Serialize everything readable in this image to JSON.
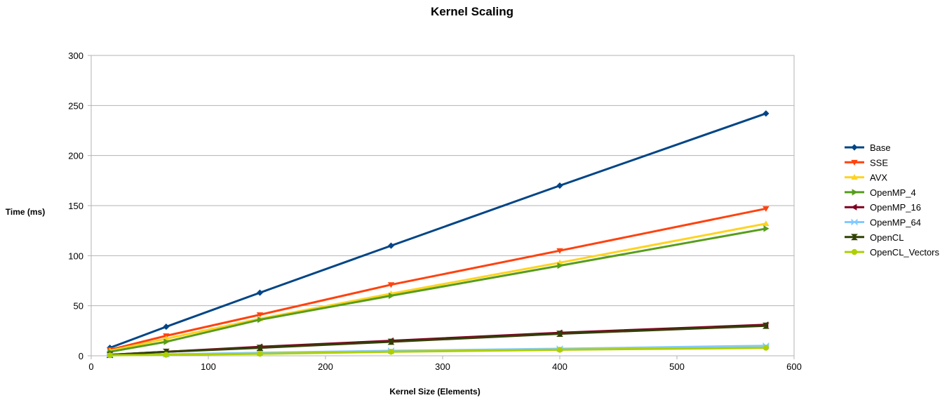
{
  "chart_data": {
    "type": "line",
    "title": "Kernel Scaling",
    "xlabel": "Kernel Size (Elements)",
    "ylabel": "Time (ms)",
    "xlim": [
      0,
      600
    ],
    "ylim": [
      0,
      300
    ],
    "xticks": [
      0,
      100,
      200,
      300,
      400,
      500,
      600
    ],
    "yticks": [
      0,
      50,
      100,
      150,
      200,
      250,
      300
    ],
    "grid": "horizontal",
    "legend_position": "right",
    "x": [
      16,
      64,
      144,
      256,
      400,
      576
    ],
    "series": [
      {
        "name": "Base",
        "color": "#004586",
        "marker": "diamond",
        "values": [
          8,
          29,
          63,
          110,
          170,
          242
        ]
      },
      {
        "name": "SSE",
        "color": "#ff420e",
        "marker": "triangle-down",
        "values": [
          6,
          20,
          41,
          71,
          105,
          147
        ]
      },
      {
        "name": "AVX",
        "color": "#ffd320",
        "marker": "triangle-up",
        "values": [
          5,
          17,
          37,
          62,
          93,
          132
        ]
      },
      {
        "name": "OpenMP_4",
        "color": "#579d1c",
        "marker": "triangle-right",
        "values": [
          4,
          14,
          36,
          60,
          90,
          127
        ]
      },
      {
        "name": "OpenMP_16",
        "color": "#7e0021",
        "marker": "triangle-left",
        "values": [
          1,
          4,
          9,
          15,
          23,
          31
        ]
      },
      {
        "name": "OpenMP_64",
        "color": "#83caff",
        "marker": "bowtie",
        "values": [
          0.5,
          1.5,
          3,
          5,
          7,
          10
        ]
      },
      {
        "name": "OpenCL",
        "color": "#314004",
        "marker": "hourglass",
        "values": [
          1,
          4,
          8,
          14,
          22,
          30
        ]
      },
      {
        "name": "OpenCL_Vectors",
        "color": "#aecf00",
        "marker": "circle",
        "values": [
          0.5,
          1,
          2,
          4,
          6,
          8
        ]
      }
    ]
  }
}
